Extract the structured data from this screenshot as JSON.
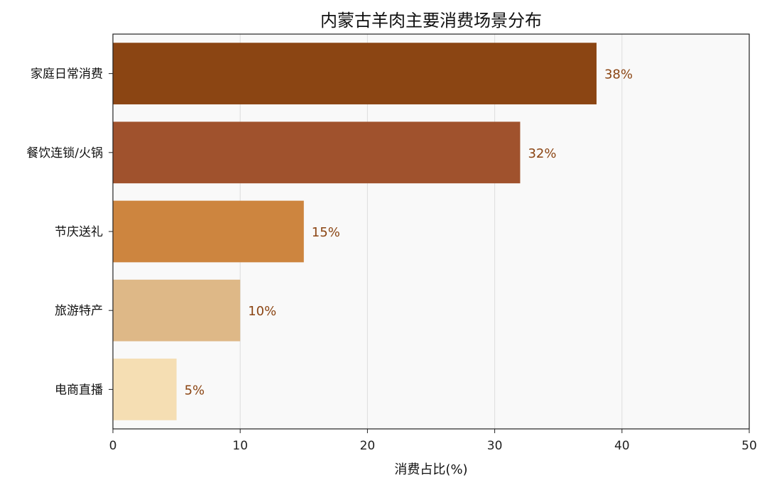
{
  "chart_data": {
    "type": "bar",
    "orientation": "horizontal",
    "title": "内蒙古羊肉主要消费场景分布",
    "xlabel": "消费占比(%)",
    "ylabel": "",
    "categories": [
      "家庭日常消费",
      "餐饮连锁/火锅",
      "节庆送礼",
      "旅游特产",
      "电商直播"
    ],
    "values": [
      38,
      32,
      15,
      10,
      5
    ],
    "value_labels": [
      "38%",
      "32%",
      "15%",
      "10%",
      "5%"
    ],
    "colors": [
      "#8B4513",
      "#A0522D",
      "#CD853F",
      "#DEB887",
      "#F5DEB3"
    ],
    "xlim": [
      0,
      50
    ],
    "xticks": [
      0,
      10,
      20,
      30,
      40,
      50
    ],
    "xtick_labels": [
      "0",
      "10",
      "20",
      "30",
      "40",
      "50"
    ],
    "grid": "vertical",
    "background": "#F9F9F9",
    "label_color": "#8B4513"
  }
}
